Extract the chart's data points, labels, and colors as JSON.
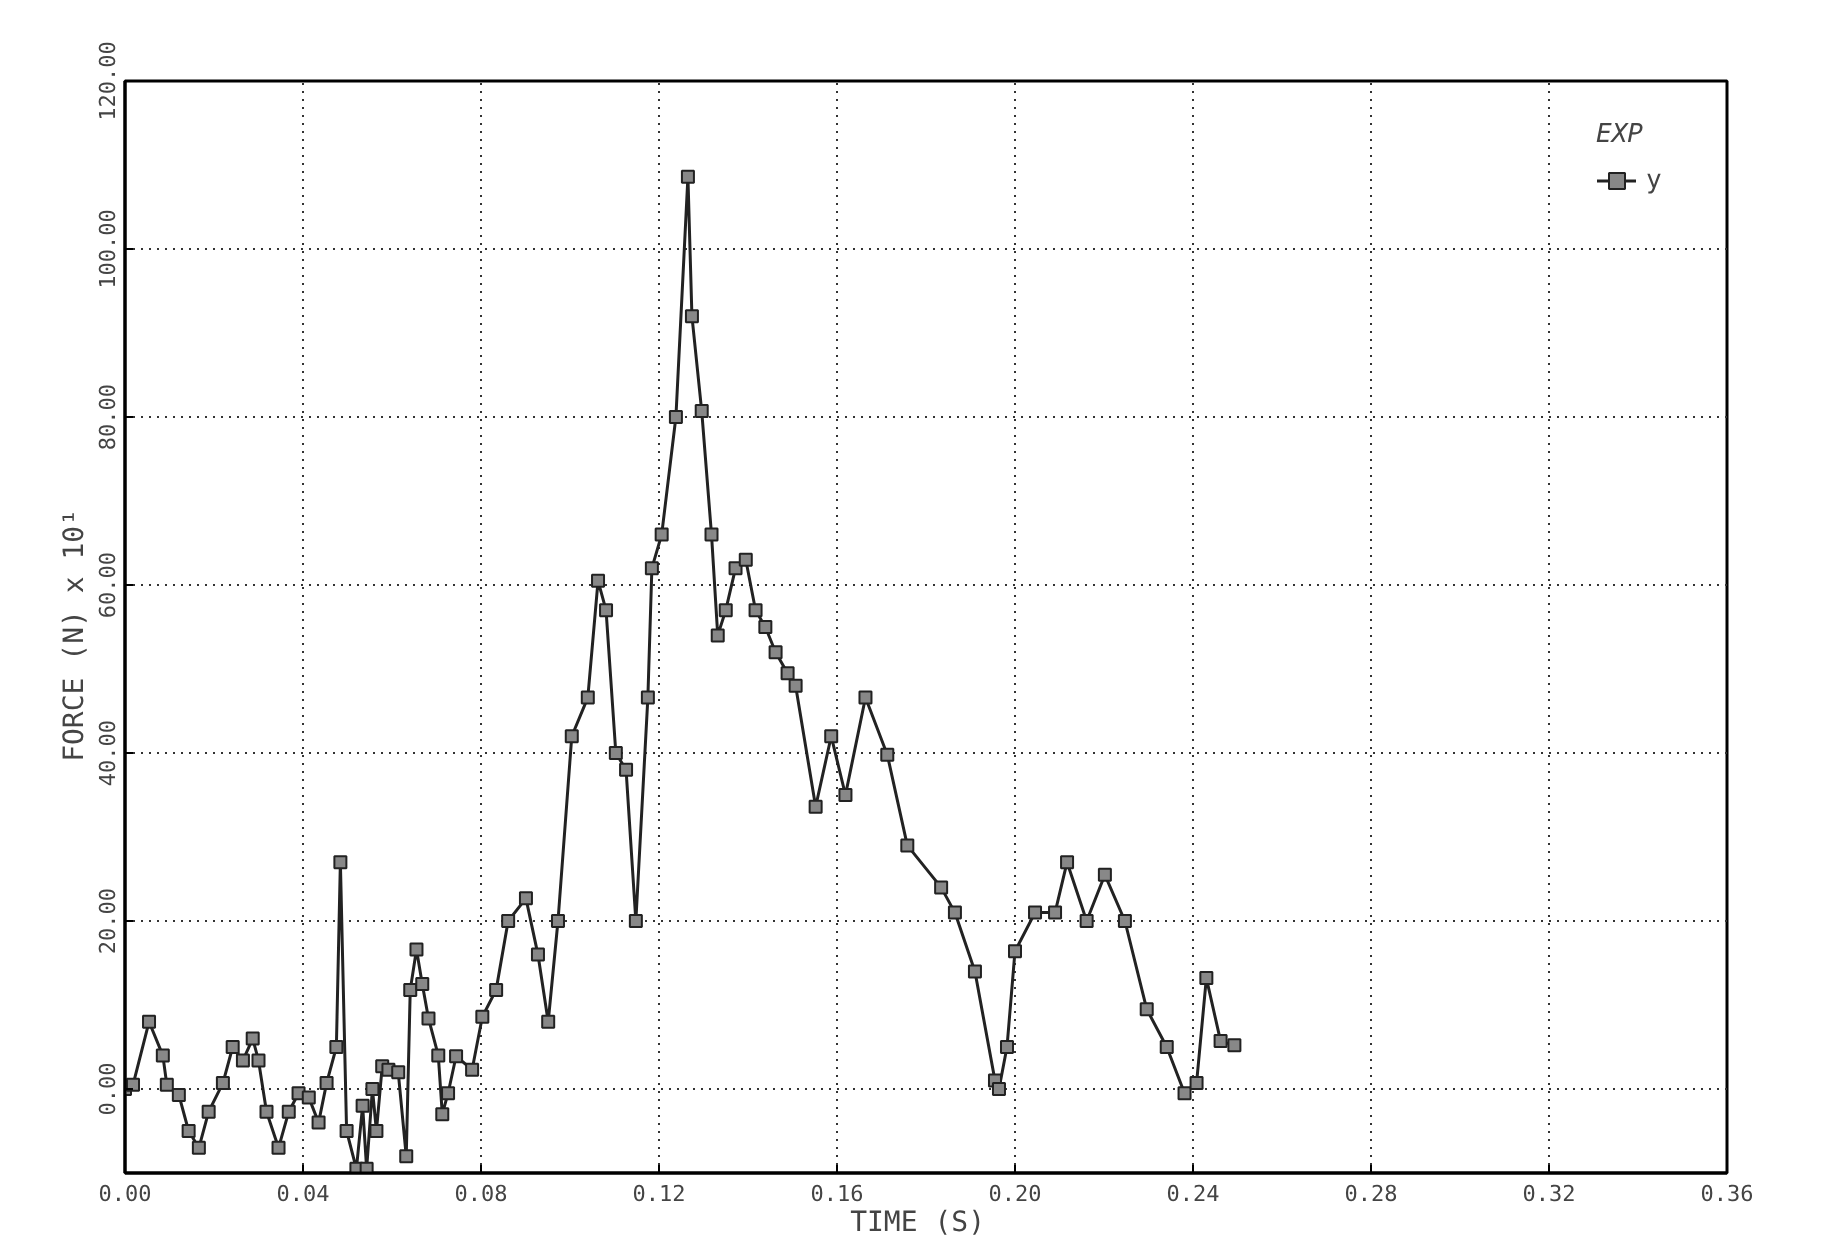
{
  "chart_data": {
    "type": "line",
    "xlabel": "TIME  (S)",
    "ylabel": "FORCE  (N) x 10¹",
    "legend_title": "EXP",
    "x": [
      0,
      0.0018,
      0.0054,
      0.0085,
      0.0094,
      0.0121,
      0.0143,
      0.0166,
      0.0188,
      0.022,
      0.0242,
      0.0265,
      0.0287,
      0.03,
      0.0318,
      0.0345,
      0.0368,
      0.039,
      0.0413,
      0.0435,
      0.0453,
      0.0475,
      0.0484,
      0.0498,
      0.052,
      0.0534,
      0.0543,
      0.0556,
      0.0565,
      0.0578,
      0.0592,
      0.0614,
      0.0632,
      0.0641,
      0.0655,
      0.0668,
      0.0682,
      0.0704,
      0.0713,
      0.0726,
      0.0744,
      0.078,
      0.0803,
      0.0834,
      0.0861,
      0.0901,
      0.0928,
      0.0951,
      0.0973,
      0.1004,
      0.104,
      0.1063,
      0.1081,
      0.1103,
      0.1126,
      0.1148,
      0.1175,
      0.1184,
      0.1206,
      0.1238,
      0.1265,
      0.1274,
      0.1296,
      0.1318,
      0.1332,
      0.135,
      0.1372,
      0.1395,
      0.1417,
      0.1439,
      0.1462,
      0.1489,
      0.1507,
      0.1552,
      0.1587,
      0.1619,
      0.1664,
      0.1713,
      0.1758,
      0.1834,
      0.1865,
      0.191,
      0.1955,
      0.1964,
      0.1982,
      0.2,
      0.2045,
      0.209,
      0.2117,
      0.2161,
      0.2202,
      0.2247,
      0.2296,
      0.2341,
      0.2381,
      0.2408,
      0.243,
      0.2462,
      0.2493
    ],
    "series": [
      {
        "name": "y",
        "color": "#222222",
        "values": [
          0,
          0.5,
          8,
          4,
          0.5,
          -0.7,
          -5,
          -7,
          -2.7,
          0.7,
          5,
          3.4,
          6,
          3.4,
          -2.7,
          -7,
          -2.7,
          -0.5,
          -1,
          -4,
          0.7,
          5,
          27,
          -5,
          -9.5,
          -2,
          -9.5,
          0,
          -5,
          2.7,
          2.3,
          2,
          -8,
          11.8,
          16.6,
          12.5,
          8.4,
          4,
          -3,
          -0.5,
          3.9,
          2.3,
          8.6,
          11.8,
          20,
          22.7,
          16,
          8,
          20,
          42,
          46.6,
          60.5,
          57,
          40,
          38,
          20,
          46.6,
          62,
          66,
          80,
          108.6,
          92,
          80.7,
          66,
          54,
          57,
          62,
          63,
          57,
          55,
          52,
          49.5,
          48,
          33.6,
          42,
          35,
          46.6,
          39.8,
          29,
          24,
          21,
          14,
          1,
          0,
          5,
          16.4,
          21,
          21,
          27,
          20,
          25.5,
          20,
          9.5,
          5,
          -0.5,
          0.7,
          13.2,
          5.7,
          5.2
        ]
      }
    ],
    "xlim": [
      0,
      0.36
    ],
    "ylim": [
      -10,
      120
    ],
    "xticks": [
      {
        "value": 0,
        "label": "0.00"
      },
      {
        "value": 0.04,
        "label": "0.04"
      },
      {
        "value": 0.08,
        "label": "0.08"
      },
      {
        "value": 0.12,
        "label": "0.12"
      },
      {
        "value": 0.16,
        "label": "0.16"
      },
      {
        "value": 0.2,
        "label": "0.20"
      },
      {
        "value": 0.24,
        "label": "0.24"
      },
      {
        "value": 0.28,
        "label": "0.28"
      },
      {
        "value": 0.32,
        "label": "0.32"
      },
      {
        "value": 0.36,
        "label": "0.36"
      }
    ],
    "yticks": [
      {
        "value": 0,
        "label": "0.00"
      },
      {
        "value": 20,
        "label": "20.00"
      },
      {
        "value": 40,
        "label": "40.00"
      },
      {
        "value": 60,
        "label": "60.00"
      },
      {
        "value": 80,
        "label": "80.00"
      },
      {
        "value": 100,
        "label": "100.00"
      },
      {
        "value": 120,
        "label": "120.00"
      }
    ],
    "grid": true,
    "legend": "top right",
    "marker": "square",
    "line_style": "solid"
  }
}
